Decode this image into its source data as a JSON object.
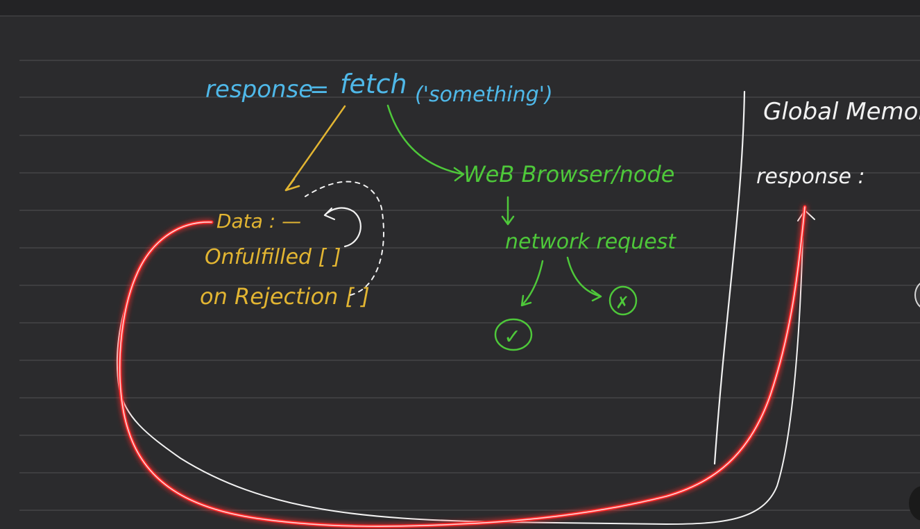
{
  "board": {
    "colors": {
      "background": "#2b2b2d",
      "rule_line": "#4a4a4c",
      "blue": "#4fb8e8",
      "yellow": "#e2b532",
      "green": "#4ec83a",
      "white": "#f2f2f2",
      "red_glow": "#ff2a2a"
    },
    "equation": {
      "lhs": "response",
      "equals": "=",
      "fn": "fetch",
      "arg": "('something')"
    },
    "promise_object": {
      "data": "Data : —",
      "onfulfilled": "Onfulfilled [ ]",
      "onrejection": "on Rejection [ ]"
    },
    "runtime": {
      "browser": "WeB Browser/node",
      "request": "network request",
      "success_symbol": "✓",
      "failure_symbol": "✗"
    },
    "memory": {
      "title": "Global Memory",
      "variable": "response :"
    }
  }
}
